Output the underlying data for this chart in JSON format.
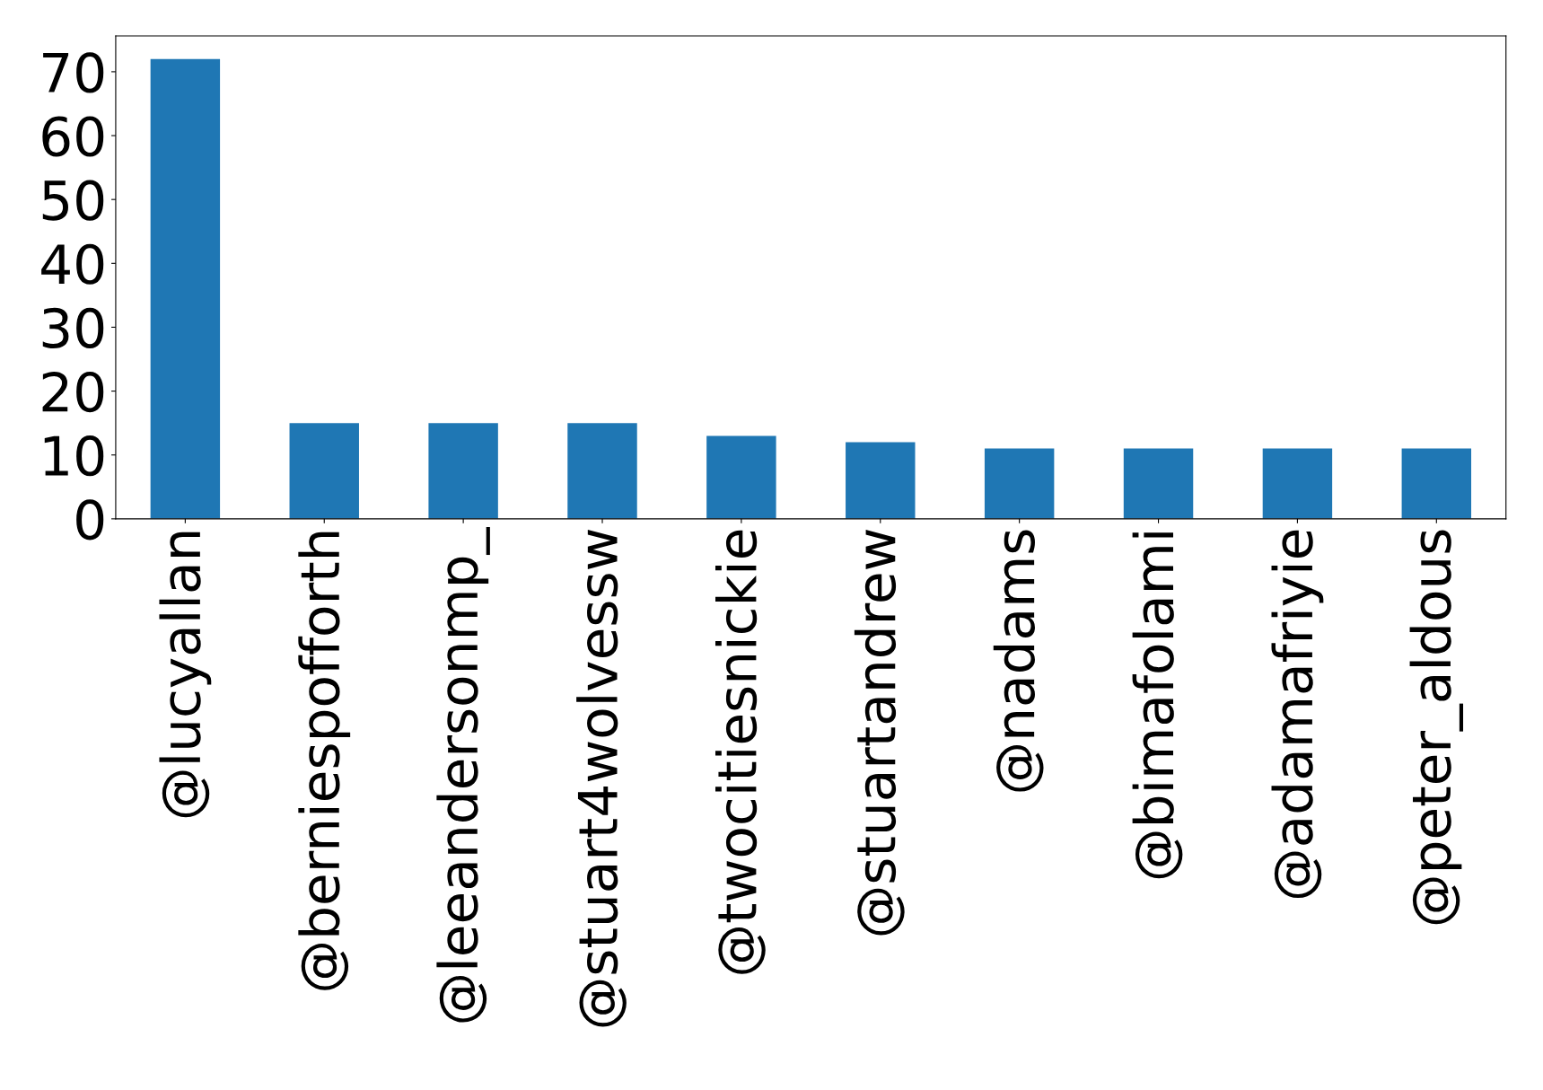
{
  "chart_data": {
    "type": "bar",
    "categories": [
      "@lucyallan",
      "@berniespofforth",
      "@leeandersonmp_",
      "@stuart4wolvessw",
      "@twocitiesnickie",
      "@stuartandrew",
      "@nadams",
      "@bimafolami",
      "@adamafriyie",
      "@peter_aldous"
    ],
    "values": [
      72,
      15,
      15,
      15,
      13,
      12,
      11,
      11,
      11,
      11
    ],
    "color": "#1f77b4",
    "ylim": [
      0,
      75.6
    ],
    "yticks": [
      0,
      10,
      20,
      30,
      40,
      50,
      60,
      70
    ],
    "grid": false,
    "legend": false
  }
}
